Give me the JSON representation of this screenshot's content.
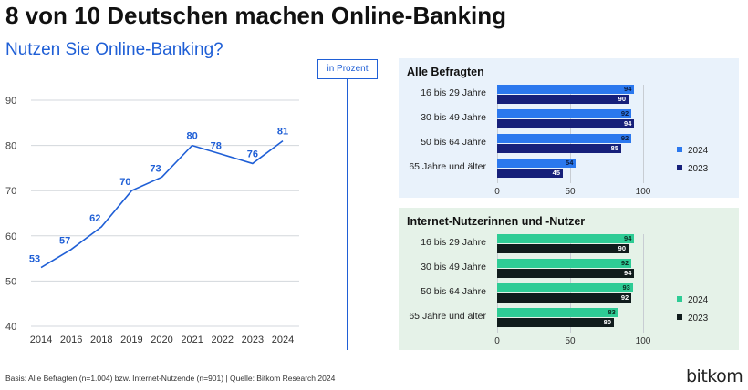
{
  "header": {
    "title": "8 von 10 Deutschen machen Online-Banking",
    "subtitle": "Nutzen Sie Online-Banking?",
    "unit_label": "in Prozent"
  },
  "footer": {
    "source": "Basis: Alle Befragten (n=1.004) bzw. Internet-Nutzende (n=901) | Quelle: Bitkom Research 2024",
    "logo": "bitkom"
  },
  "colors": {
    "line": "#1f5fd6",
    "bar_2024_all": "#2b78ee",
    "bar_2023_all": "#16207a",
    "bar_2024_internet": "#2ecc95",
    "bar_2023_internet": "#101c1c",
    "panel_all_bg": "#e9f2fb",
    "panel_internet_bg": "#e5f2e8"
  },
  "chart_data": [
    {
      "type": "line",
      "title": "Nutzen Sie Online-Banking?",
      "x": [
        "2014",
        "2016",
        "2018",
        "2019",
        "2020",
        "2021",
        "2022",
        "2023",
        "2024"
      ],
      "y": [
        53,
        57,
        62,
        70,
        73,
        80,
        78,
        76,
        81
      ],
      "ylim": [
        40,
        90
      ],
      "yticks": [
        40,
        50,
        60,
        70,
        80,
        90
      ],
      "grid": true,
      "xlabel": "",
      "ylabel": ""
    },
    {
      "type": "bar",
      "orientation": "horizontal",
      "title": "Alle Befragten",
      "categories": [
        "16 bis 29 Jahre",
        "30 bis 49 Jahre",
        "50 bis 64 Jahre",
        "65 Jahre und älter"
      ],
      "series": [
        {
          "name": "2024",
          "values": [
            94,
            92,
            92,
            54
          ]
        },
        {
          "name": "2023",
          "values": [
            90,
            94,
            85,
            45
          ]
        }
      ],
      "xlim": [
        0,
        100
      ],
      "xticks": [
        0,
        50,
        100
      ],
      "legend": "right"
    },
    {
      "type": "bar",
      "orientation": "horizontal",
      "title": "Internet-Nutzerinnen und -Nutzer",
      "categories": [
        "16 bis 29 Jahre",
        "30 bis 49 Jahre",
        "50 bis 64 Jahre",
        "65 Jahre und älter"
      ],
      "series": [
        {
          "name": "2024",
          "values": [
            94,
            92,
            93,
            83
          ]
        },
        {
          "name": "2023",
          "values": [
            90,
            94,
            92,
            80
          ]
        }
      ],
      "xlim": [
        0,
        100
      ],
      "xticks": [
        0,
        50,
        100
      ],
      "legend": "right"
    }
  ]
}
